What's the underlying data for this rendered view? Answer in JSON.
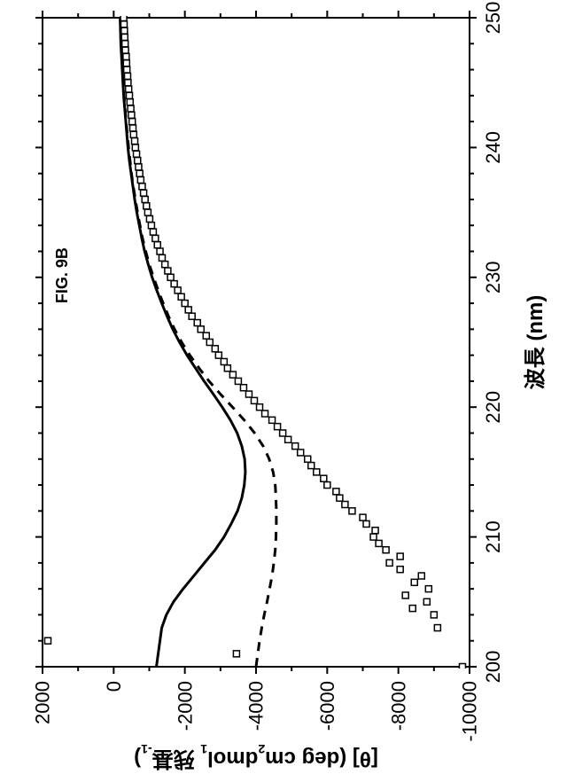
{
  "figure": {
    "title": "FIG. 9B",
    "title_fontsize": 18,
    "rotation_deg": -90,
    "background_color": "#ffffff",
    "plot": {
      "type": "line+scatter",
      "xlim": [
        200,
        250
      ],
      "ylim": [
        -10000,
        2000
      ],
      "xtick_step": 10,
      "ytick_step": 2000,
      "xticks": [
        200,
        210,
        220,
        230,
        240,
        250
      ],
      "yticks": [
        -10000,
        -8000,
        -6000,
        -4000,
        -2000,
        0,
        2000
      ],
      "minor_xtick_step": 2,
      "minor_ytick_step": 1000,
      "tick_in": false,
      "tick_len_major": 8,
      "tick_len_minor": 5,
      "axis_color": "#000000",
      "axis_width": 2,
      "tick_label_fontsize": 22,
      "axis_label_fontsize": 24,
      "xlabel": "波長 (nm)",
      "ylabel": "[θ] (degcm²dmol¹ 残基⁻¹)"
    },
    "series": {
      "solid": {
        "style": "solid",
        "color": "#000000",
        "line_width": 3,
        "points": [
          [
            200,
            -1200
          ],
          [
            201,
            -1250
          ],
          [
            202,
            -1300
          ],
          [
            203,
            -1350
          ],
          [
            204,
            -1480
          ],
          [
            205,
            -1680
          ],
          [
            206,
            -1950
          ],
          [
            207,
            -2250
          ],
          [
            208,
            -2550
          ],
          [
            209,
            -2850
          ],
          [
            210,
            -3100
          ],
          [
            211,
            -3300
          ],
          [
            212,
            -3480
          ],
          [
            213,
            -3600
          ],
          [
            214,
            -3670
          ],
          [
            215,
            -3700
          ],
          [
            216,
            -3680
          ],
          [
            217,
            -3600
          ],
          [
            218,
            -3470
          ],
          [
            219,
            -3280
          ],
          [
            220,
            -3050
          ],
          [
            221,
            -2800
          ],
          [
            222,
            -2540
          ],
          [
            223,
            -2300
          ],
          [
            224,
            -2060
          ],
          [
            225,
            -1850
          ],
          [
            226,
            -1660
          ],
          [
            227,
            -1500
          ],
          [
            228,
            -1350
          ],
          [
            229,
            -1210
          ],
          [
            230,
            -1080
          ],
          [
            231,
            -970
          ],
          [
            232,
            -870
          ],
          [
            233,
            -790
          ],
          [
            234,
            -720
          ],
          [
            235,
            -650
          ],
          [
            236,
            -590
          ],
          [
            237,
            -540
          ],
          [
            238,
            -490
          ],
          [
            239,
            -440
          ],
          [
            240,
            -400
          ],
          [
            241,
            -370
          ],
          [
            242,
            -340
          ],
          [
            243,
            -310
          ],
          [
            244,
            -280
          ],
          [
            245,
            -260
          ],
          [
            246,
            -240
          ],
          [
            247,
            -220
          ],
          [
            248,
            -200
          ],
          [
            249,
            -190
          ],
          [
            250,
            -180
          ]
        ]
      },
      "dashed": {
        "style": "dashed",
        "dash": "10 8",
        "color": "#000000",
        "line_width": 3,
        "points": [
          [
            200,
            -4000
          ],
          [
            201,
            -4050
          ],
          [
            202,
            -4100
          ],
          [
            203,
            -4160
          ],
          [
            204,
            -4230
          ],
          [
            205,
            -4310
          ],
          [
            206,
            -4380
          ],
          [
            207,
            -4450
          ],
          [
            208,
            -4500
          ],
          [
            209,
            -4540
          ],
          [
            210,
            -4560
          ],
          [
            211,
            -4570
          ],
          [
            212,
            -4570
          ],
          [
            213,
            -4560
          ],
          [
            214,
            -4540
          ],
          [
            215,
            -4480
          ],
          [
            216,
            -4370
          ],
          [
            217,
            -4200
          ],
          [
            218,
            -3960
          ],
          [
            219,
            -3670
          ],
          [
            220,
            -3340
          ],
          [
            221,
            -3000
          ],
          [
            222,
            -2680
          ],
          [
            223,
            -2400
          ],
          [
            224,
            -2140
          ],
          [
            225,
            -1910
          ],
          [
            226,
            -1710
          ],
          [
            227,
            -1540
          ],
          [
            228,
            -1390
          ],
          [
            229,
            -1250
          ],
          [
            230,
            -1120
          ],
          [
            231,
            -1000
          ],
          [
            232,
            -900
          ],
          [
            233,
            -810
          ],
          [
            234,
            -740
          ],
          [
            235,
            -670
          ],
          [
            236,
            -610
          ],
          [
            237,
            -550
          ],
          [
            238,
            -500
          ],
          [
            239,
            -460
          ],
          [
            240,
            -420
          ],
          [
            241,
            -380
          ],
          [
            242,
            -350
          ],
          [
            243,
            -320
          ],
          [
            244,
            -290
          ],
          [
            245,
            -270
          ],
          [
            246,
            -250
          ],
          [
            247,
            -230
          ],
          [
            248,
            -210
          ],
          [
            249,
            -200
          ],
          [
            250,
            -190
          ]
        ]
      },
      "scatter": {
        "style": "open-square",
        "color": "#000000",
        "fill_color": "#ffffff",
        "marker_size": 7,
        "points": [
          [
            200,
            -9800
          ],
          [
            201,
            -3450
          ],
          [
            202,
            1850
          ],
          [
            203,
            -9100
          ],
          [
            204,
            -9000
          ],
          [
            204.5,
            -8400
          ],
          [
            205,
            -8800
          ],
          [
            205.5,
            -8200
          ],
          [
            206,
            -8850
          ],
          [
            206.5,
            -8450
          ],
          [
            207,
            -8650
          ],
          [
            207.5,
            -8050
          ],
          [
            208,
            -7750
          ],
          [
            208.5,
            -8050
          ],
          [
            209,
            -7650
          ],
          [
            209.5,
            -7450
          ],
          [
            210,
            -7300
          ],
          [
            210.5,
            -7350
          ],
          [
            211,
            -7100
          ],
          [
            211.5,
            -7000
          ],
          [
            212,
            -6700
          ],
          [
            212.5,
            -6500
          ],
          [
            213,
            -6350
          ],
          [
            213.5,
            -6250
          ],
          [
            214,
            -6000
          ],
          [
            214.5,
            -5900
          ],
          [
            215,
            -5700
          ],
          [
            215.5,
            -5550
          ],
          [
            216,
            -5450
          ],
          [
            216.5,
            -5250
          ],
          [
            217,
            -5100
          ],
          [
            217.5,
            -4900
          ],
          [
            218,
            -4750
          ],
          [
            218.5,
            -4600
          ],
          [
            219,
            -4450
          ],
          [
            219.5,
            -4250
          ],
          [
            220,
            -4100
          ],
          [
            220.5,
            -3950
          ],
          [
            221,
            -3800
          ],
          [
            221.5,
            -3650
          ],
          [
            222,
            -3500
          ],
          [
            222.5,
            -3350
          ],
          [
            223,
            -3200
          ],
          [
            223.5,
            -3100
          ],
          [
            224,
            -2950
          ],
          [
            224.5,
            -2850
          ],
          [
            225,
            -2700
          ],
          [
            225.5,
            -2600
          ],
          [
            226,
            -2450
          ],
          [
            226.5,
            -2350
          ],
          [
            227,
            -2200
          ],
          [
            227.5,
            -2100
          ],
          [
            228,
            -2000
          ],
          [
            228.5,
            -1900
          ],
          [
            229,
            -1800
          ],
          [
            229.5,
            -1700
          ],
          [
            230,
            -1600
          ],
          [
            230.5,
            -1520
          ],
          [
            231,
            -1440
          ],
          [
            231.5,
            -1360
          ],
          [
            232,
            -1300
          ],
          [
            232.5,
            -1230
          ],
          [
            233,
            -1170
          ],
          [
            233.5,
            -1110
          ],
          [
            234,
            -1060
          ],
          [
            234.5,
            -1010
          ],
          [
            235,
            -960
          ],
          [
            235.5,
            -920
          ],
          [
            236,
            -880
          ],
          [
            236.5,
            -840
          ],
          [
            237,
            -800
          ],
          [
            237.5,
            -760
          ],
          [
            238,
            -730
          ],
          [
            238.5,
            -700
          ],
          [
            239,
            -670
          ],
          [
            239.5,
            -640
          ],
          [
            240,
            -610
          ],
          [
            240.5,
            -590
          ],
          [
            241,
            -560
          ],
          [
            241.5,
            -540
          ],
          [
            242,
            -520
          ],
          [
            242.5,
            -500
          ],
          [
            243,
            -480
          ],
          [
            243.5,
            -460
          ],
          [
            244,
            -440
          ],
          [
            244.5,
            -420
          ],
          [
            245,
            -400
          ],
          [
            245.5,
            -390
          ],
          [
            246,
            -370
          ],
          [
            246.5,
            -360
          ],
          [
            247,
            -350
          ],
          [
            247.5,
            -330
          ],
          [
            248,
            -320
          ],
          [
            248.5,
            -310
          ],
          [
            249,
            -300
          ],
          [
            249.5,
            -290
          ],
          [
            250,
            -280
          ]
        ]
      }
    }
  }
}
